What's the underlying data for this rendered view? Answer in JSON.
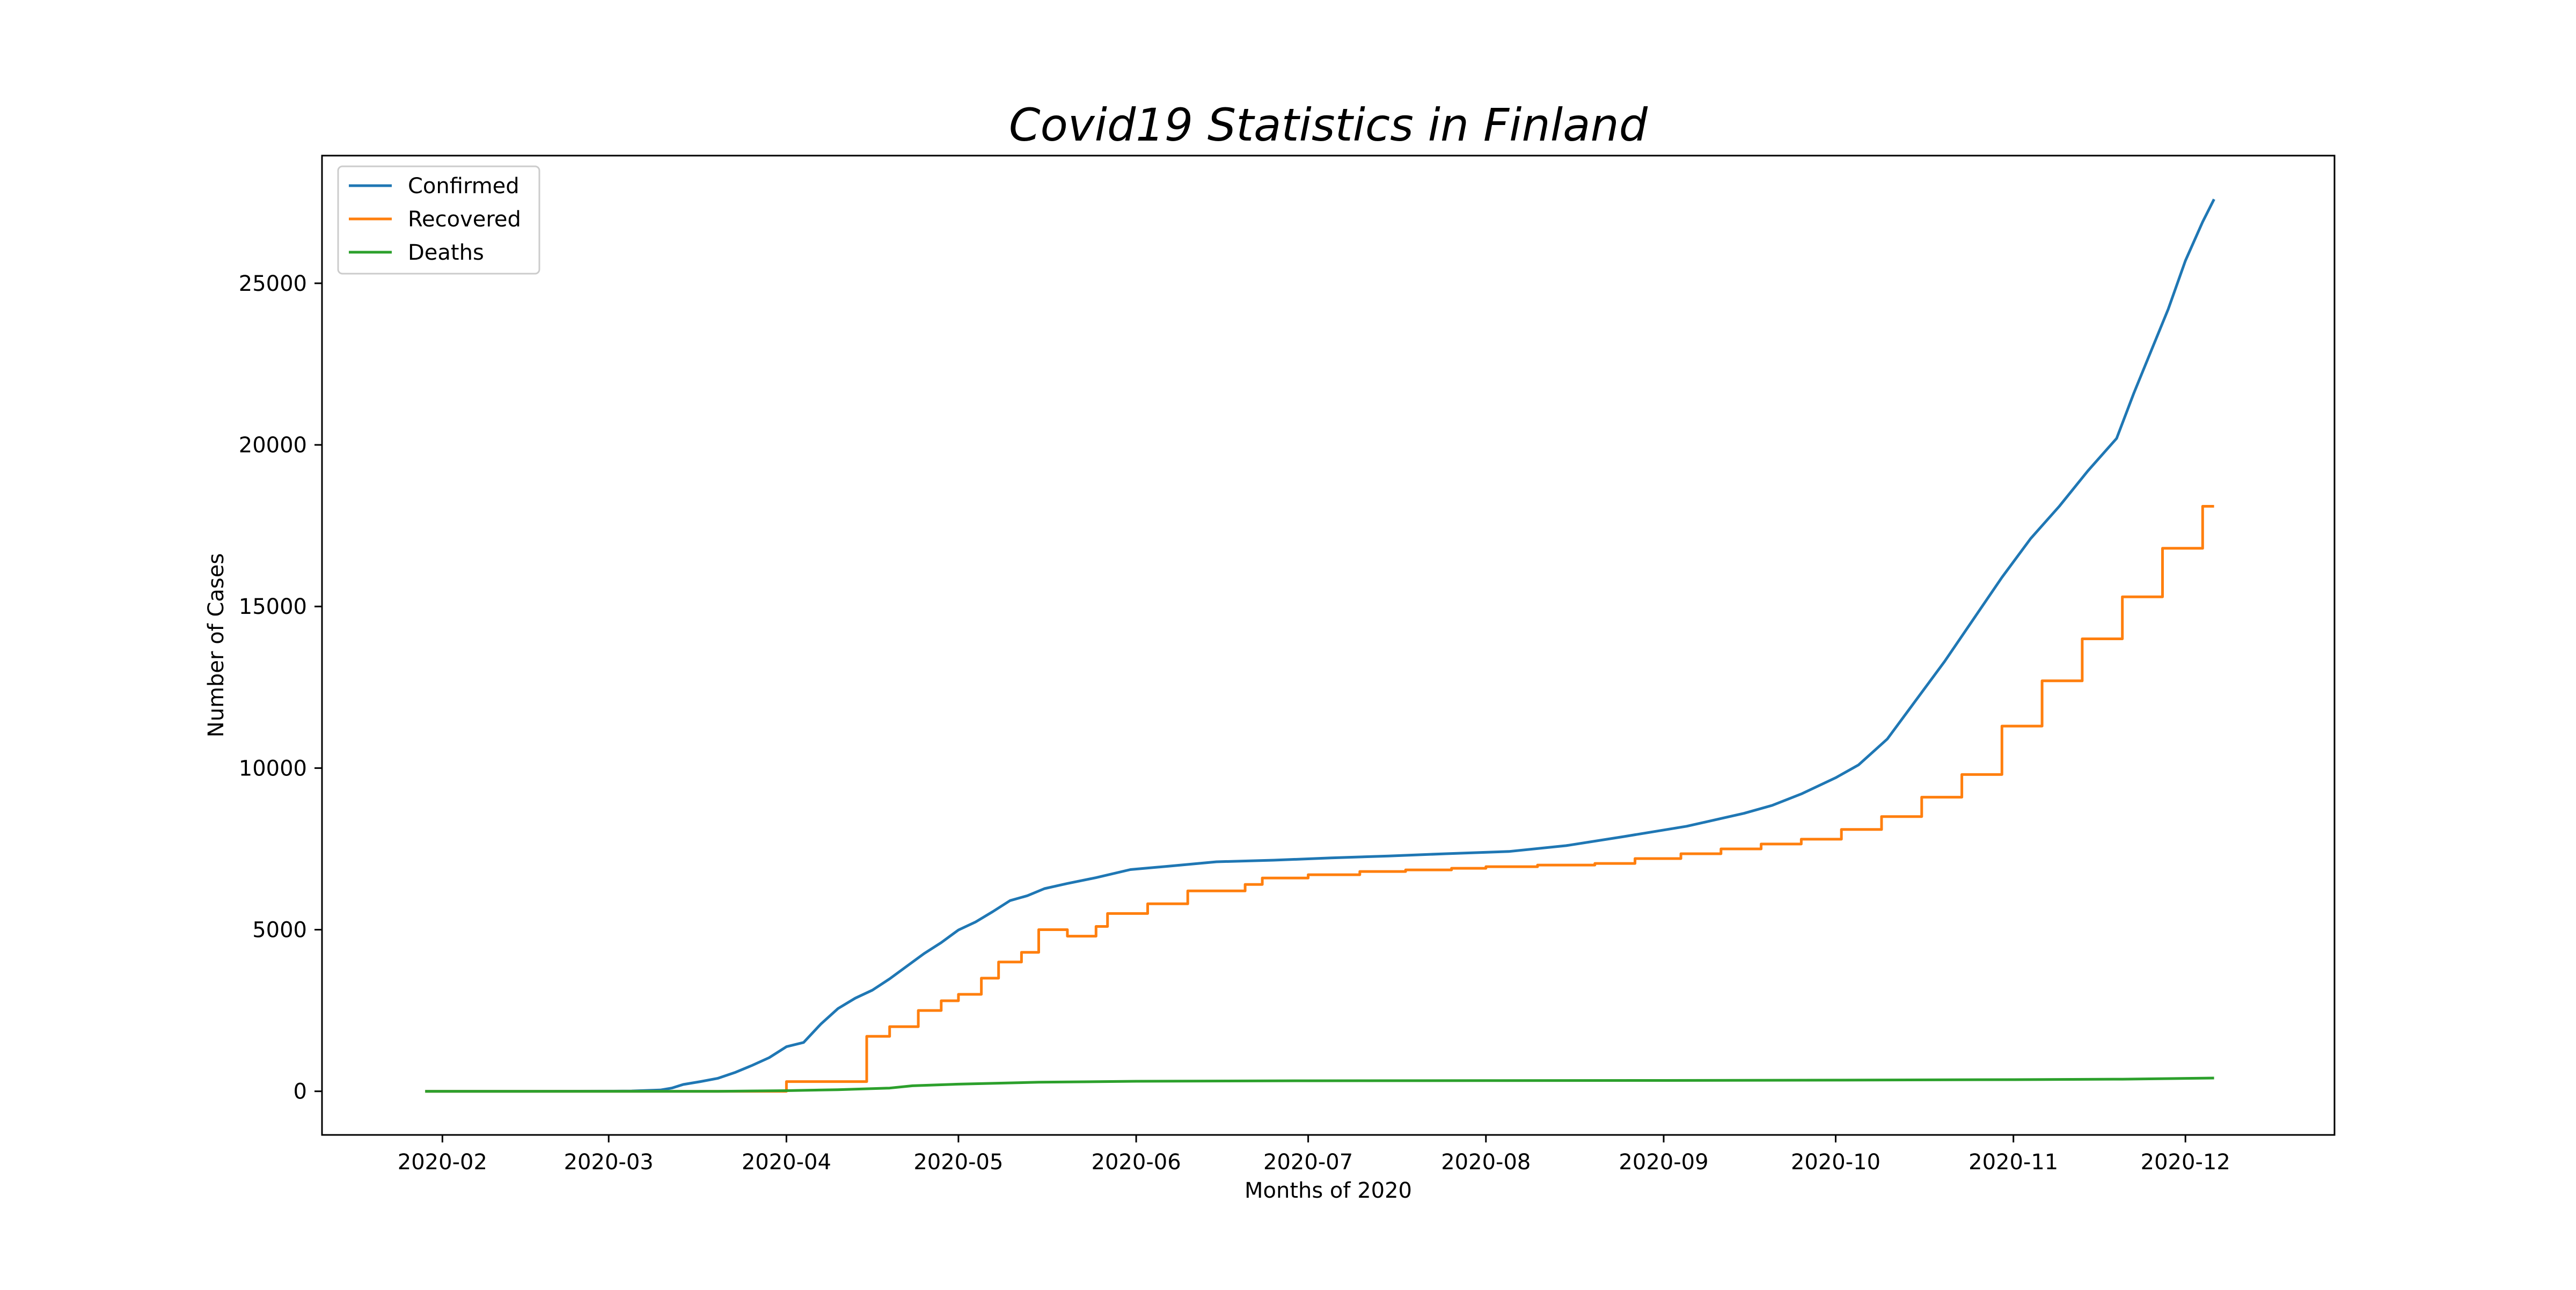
{
  "chart_data": {
    "type": "line",
    "title": "Covid19 Statistics in Finland",
    "xlabel": "Months of 2020",
    "ylabel": "Number of Cases",
    "x_tick_labels": [
      "2020-02",
      "2020-03",
      "2020-04",
      "2020-05",
      "2020-06",
      "2020-07",
      "2020-08",
      "2020-09",
      "2020-10",
      "2020-11",
      "2020-12"
    ],
    "y_tick_labels": [
      "0",
      "5000",
      "10000",
      "15000",
      "20000",
      "25000"
    ],
    "xlim": [
      "2020-01-11",
      "2020-12-27"
    ],
    "ylim": [
      -1350,
      28950
    ],
    "grid": false,
    "legend_position": "top-left",
    "series": [
      {
        "name": "Confirmed",
        "color": "#1f77b4",
        "step": false,
        "points": [
          [
            "2020-01-29",
            0
          ],
          [
            "2020-02-15",
            0
          ],
          [
            "2020-03-01",
            5
          ],
          [
            "2020-03-05",
            10
          ],
          [
            "2020-03-10",
            40
          ],
          [
            "2020-03-12",
            100
          ],
          [
            "2020-03-14",
            210
          ],
          [
            "2020-03-17",
            300
          ],
          [
            "2020-03-20",
            400
          ],
          [
            "2020-03-23",
            580
          ],
          [
            "2020-03-26",
            800
          ],
          [
            "2020-03-29",
            1040
          ],
          [
            "2020-04-01",
            1380
          ],
          [
            "2020-04-04",
            1510
          ],
          [
            "2020-04-07",
            2080
          ],
          [
            "2020-04-10",
            2560
          ],
          [
            "2020-04-13",
            2880
          ],
          [
            "2020-04-16",
            3130
          ],
          [
            "2020-04-19",
            3480
          ],
          [
            "2020-04-22",
            3870
          ],
          [
            "2020-04-25",
            4260
          ],
          [
            "2020-04-28",
            4600
          ],
          [
            "2020-05-01",
            4990
          ],
          [
            "2020-05-04",
            5240
          ],
          [
            "2020-05-07",
            5560
          ],
          [
            "2020-05-10",
            5900
          ],
          [
            "2020-05-13",
            6050
          ],
          [
            "2020-05-16",
            6270
          ],
          [
            "2020-05-20",
            6430
          ],
          [
            "2020-05-25",
            6610
          ],
          [
            "2020-05-31",
            6860
          ],
          [
            "2020-06-07",
            6970
          ],
          [
            "2020-06-15",
            7100
          ],
          [
            "2020-06-25",
            7150
          ],
          [
            "2020-07-05",
            7220
          ],
          [
            "2020-07-15",
            7280
          ],
          [
            "2020-07-25",
            7350
          ],
          [
            "2020-08-05",
            7420
          ],
          [
            "2020-08-15",
            7600
          ],
          [
            "2020-08-25",
            7880
          ],
          [
            "2020-09-05",
            8200
          ],
          [
            "2020-09-15",
            8600
          ],
          [
            "2020-09-20",
            8850
          ],
          [
            "2020-09-25",
            9200
          ],
          [
            "2020-10-01",
            9700
          ],
          [
            "2020-10-05",
            10100
          ],
          [
            "2020-10-10",
            10900
          ],
          [
            "2020-10-15",
            12100
          ],
          [
            "2020-10-20",
            13300
          ],
          [
            "2020-10-25",
            14600
          ],
          [
            "2020-10-30",
            15900
          ],
          [
            "2020-11-04",
            17100
          ],
          [
            "2020-11-09",
            18100
          ],
          [
            "2020-11-14",
            19200
          ],
          [
            "2020-11-19",
            20200
          ],
          [
            "2020-11-22",
            21600
          ],
          [
            "2020-11-25",
            22900
          ],
          [
            "2020-11-28",
            24200
          ],
          [
            "2020-12-01",
            25700
          ],
          [
            "2020-12-04",
            26900
          ],
          [
            "2020-12-06",
            27600
          ]
        ]
      },
      {
        "name": "Recovered",
        "color": "#ff7f0e",
        "step": true,
        "points": [
          [
            "2020-01-29",
            0
          ],
          [
            "2020-04-01",
            300
          ],
          [
            "2020-04-15",
            1700
          ],
          [
            "2020-04-19",
            2000
          ],
          [
            "2020-04-24",
            2500
          ],
          [
            "2020-04-28",
            2800
          ],
          [
            "2020-05-01",
            3000
          ],
          [
            "2020-05-05",
            3500
          ],
          [
            "2020-05-08",
            4000
          ],
          [
            "2020-05-12",
            4300
          ],
          [
            "2020-05-15",
            5000
          ],
          [
            "2020-05-20",
            4800
          ],
          [
            "2020-05-25",
            5100
          ],
          [
            "2020-05-27",
            5500
          ],
          [
            "2020-06-03",
            5800
          ],
          [
            "2020-06-10",
            6200
          ],
          [
            "2020-06-20",
            6400
          ],
          [
            "2020-06-23",
            6600
          ],
          [
            "2020-07-01",
            6700
          ],
          [
            "2020-07-10",
            6800
          ],
          [
            "2020-07-18",
            6850
          ],
          [
            "2020-07-26",
            6900
          ],
          [
            "2020-08-01",
            6950
          ],
          [
            "2020-08-10",
            7000
          ],
          [
            "2020-08-20",
            7050
          ],
          [
            "2020-08-27",
            7200
          ],
          [
            "2020-09-04",
            7350
          ],
          [
            "2020-09-11",
            7500
          ],
          [
            "2020-09-18",
            7650
          ],
          [
            "2020-09-25",
            7800
          ],
          [
            "2020-10-02",
            8100
          ],
          [
            "2020-10-09",
            8500
          ],
          [
            "2020-10-16",
            9100
          ],
          [
            "2020-10-23",
            9800
          ],
          [
            "2020-10-30",
            11300
          ],
          [
            "2020-11-06",
            12700
          ],
          [
            "2020-11-13",
            14000
          ],
          [
            "2020-11-20",
            15300
          ],
          [
            "2020-11-27",
            16800
          ],
          [
            "2020-12-04",
            18100
          ],
          [
            "2020-12-06",
            18100
          ]
        ]
      },
      {
        "name": "Deaths",
        "color": "#2ca02c",
        "step": false,
        "points": [
          [
            "2020-01-29",
            0
          ],
          [
            "2020-03-20",
            0
          ],
          [
            "2020-04-01",
            20
          ],
          [
            "2020-04-10",
            50
          ],
          [
            "2020-04-19",
            100
          ],
          [
            "2020-04-23",
            170
          ],
          [
            "2020-05-01",
            220
          ],
          [
            "2020-05-15",
            280
          ],
          [
            "2020-06-01",
            310
          ],
          [
            "2020-07-01",
            325
          ],
          [
            "2020-08-01",
            330
          ],
          [
            "2020-09-01",
            335
          ],
          [
            "2020-10-01",
            345
          ],
          [
            "2020-11-01",
            360
          ],
          [
            "2020-11-20",
            375
          ],
          [
            "2020-12-06",
            410
          ]
        ]
      }
    ]
  }
}
